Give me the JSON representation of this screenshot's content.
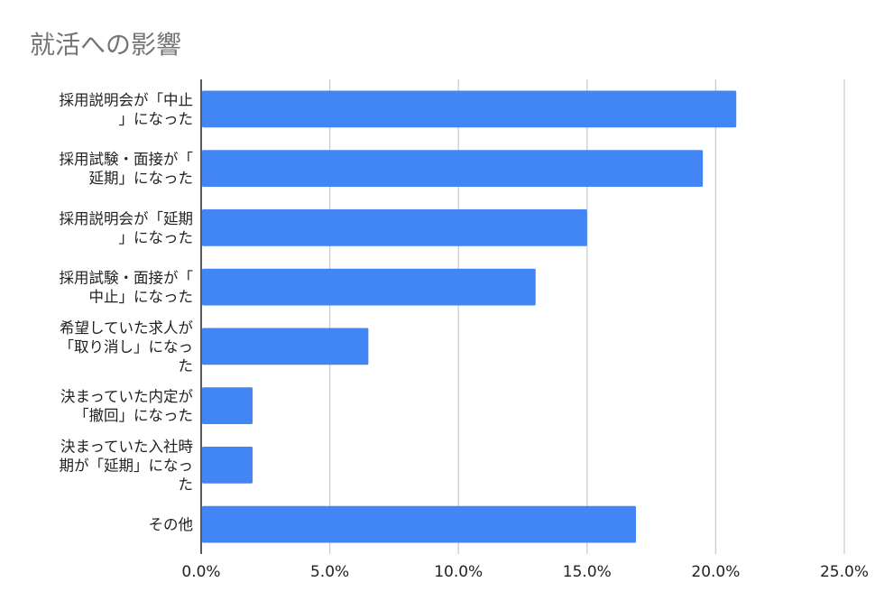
{
  "chart_data": {
    "type": "bar",
    "orientation": "horizontal",
    "title": "就活への影響",
    "categories": [
      [
        "採用説明会が「中止",
        "」になった"
      ],
      [
        "採用試験・面接が「",
        "延期」になった"
      ],
      [
        "採用説明会が「延期",
        "」になった"
      ],
      [
        "採用試験・面接が「",
        "中止」になった"
      ],
      [
        "希望していた求人が",
        "「取り消し」になっ",
        "た"
      ],
      [
        "決まっていた内定が",
        "「撤回」になった"
      ],
      [
        "決まっていた入社時",
        "期が「延期」になっ",
        "た"
      ],
      [
        "その他"
      ]
    ],
    "values": [
      20.8,
      19.5,
      15.0,
      13.0,
      6.5,
      2.0,
      2.0,
      16.9
    ],
    "xlim": [
      0,
      25
    ],
    "xticks": [
      "0.0%",
      "5.0%",
      "10.0%",
      "15.0%",
      "20.0%",
      "25.0%"
    ],
    "xlabel": "",
    "ylabel": "",
    "grid": true,
    "legend": "none",
    "bar_color": "#4285f4",
    "grid_color": "#cccccc",
    "axis_color": "#222222"
  }
}
